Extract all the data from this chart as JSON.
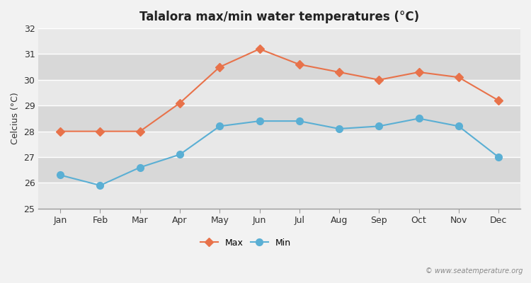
{
  "title": "Talalora max/min water temperatures (°C)",
  "ylabel": "Celcius (°C)",
  "months": [
    "Jan",
    "Feb",
    "Mar",
    "Apr",
    "May",
    "Jun",
    "Jul",
    "Aug",
    "Sep",
    "Oct",
    "Nov",
    "Dec"
  ],
  "max_values": [
    28.0,
    28.0,
    28.0,
    29.1,
    30.5,
    31.2,
    30.6,
    30.3,
    30.0,
    30.3,
    30.1,
    29.2
  ],
  "min_values": [
    26.3,
    25.9,
    26.6,
    27.1,
    28.2,
    28.4,
    28.4,
    28.1,
    28.2,
    28.5,
    28.2,
    27.0
  ],
  "max_color": "#e8724a",
  "min_color": "#5aafd4",
  "ylim": [
    25,
    32
  ],
  "yticks": [
    25,
    26,
    27,
    28,
    29,
    30,
    31,
    32
  ],
  "band_colors": [
    "#e8e8e8",
    "#d8d8d8"
  ],
  "outer_bg": "#f2f2f2",
  "grid_color": "#ffffff",
  "watermark": "© www.seatemperature.org",
  "legend_max": "Max",
  "legend_min": "Min",
  "max_marker": "D",
  "min_marker": "o",
  "line_width": 1.5,
  "max_marker_size": 6,
  "min_marker_size": 7
}
